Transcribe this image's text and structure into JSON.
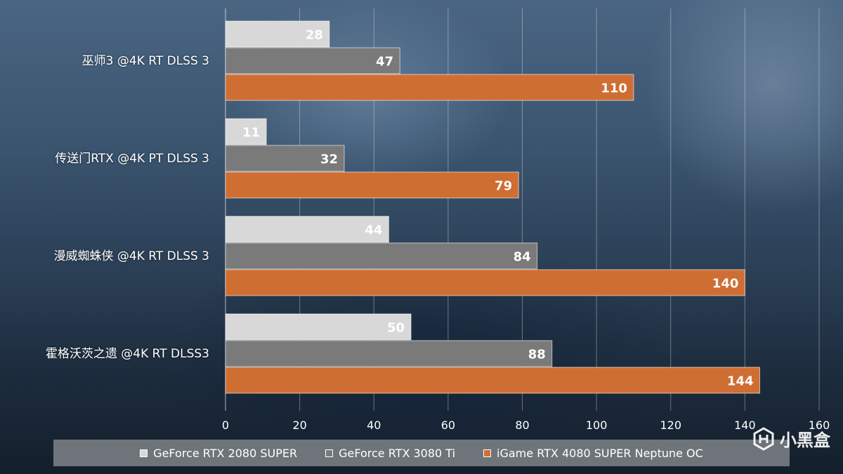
{
  "chart_data": {
    "type": "bar",
    "orientation": "horizontal",
    "categories": [
      "巫师3 @4K RT DLSS 3",
      "传送门RTX @4K PT DLSS 3",
      "漫威蜘蛛侠 @4K RT DLSS 3",
      "霍格沃茨之遗 @4K RT DLSS3"
    ],
    "series": [
      {
        "name": "GeForce RTX 2080 SUPER",
        "color": "#d8d8d8",
        "values": [
          28,
          11,
          44,
          50
        ]
      },
      {
        "name": "GeForce RTX 3080 Ti",
        "color": "#7a7a7a",
        "values": [
          47,
          32,
          84,
          88
        ]
      },
      {
        "name": "iGame RTX 4080 SUPER Neptune OC",
        "color": "#cf6e33",
        "values": [
          110,
          79,
          140,
          144
        ]
      }
    ],
    "xlim": [
      0,
      160
    ],
    "xticks": [
      0,
      20,
      40,
      60,
      80,
      100,
      120,
      140,
      160
    ],
    "grid": true,
    "legend_position": "bottom",
    "title": "",
    "xlabel": "",
    "ylabel": ""
  },
  "watermark": {
    "text": "小黑盒"
  }
}
